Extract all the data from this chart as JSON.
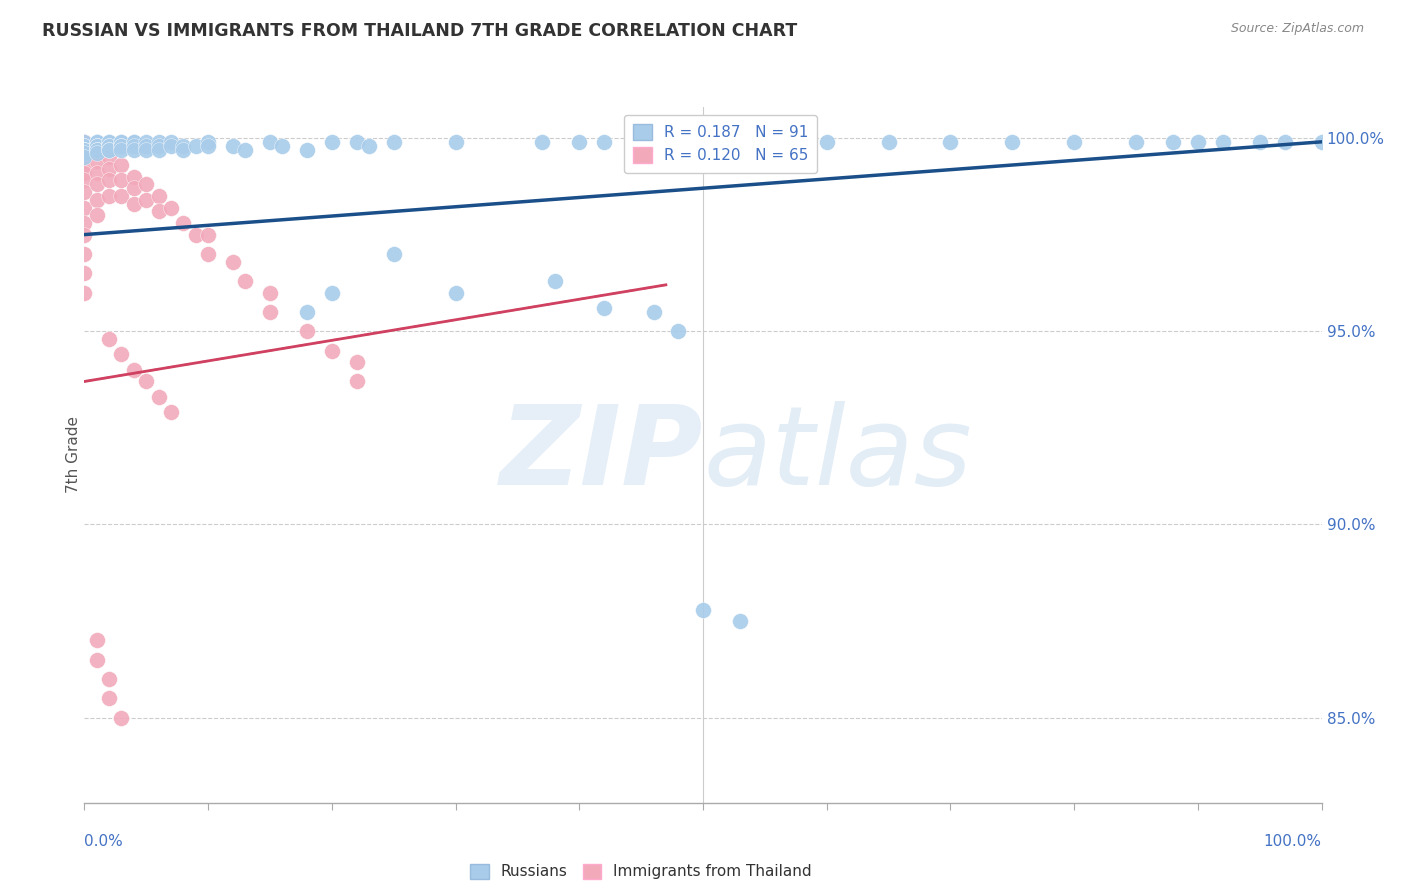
{
  "title": "RUSSIAN VS IMMIGRANTS FROM THAILAND 7TH GRADE CORRELATION CHART",
  "source": "Source: ZipAtlas.com",
  "ylabel": "7th Grade",
  "xmin": 0.0,
  "xmax": 1.0,
  "ymin": 0.828,
  "ymax": 1.008,
  "yticks": [
    0.85,
    0.9,
    0.95,
    1.0
  ],
  "ytick_labels": [
    "85.0%",
    "90.0%",
    "95.0%",
    "100.0%"
  ],
  "r_blue": 0.187,
  "n_blue": 91,
  "r_pink": 0.12,
  "n_pink": 65,
  "blue_color": "#A8CCEA",
  "pink_color": "#F2AABB",
  "trend_blue_color": "#1A4F8A",
  "trend_pink_color": "#D04060",
  "blue_trend_x0": 0.0,
  "blue_trend_x1": 1.0,
  "blue_trend_y0": 0.975,
  "blue_trend_y1": 0.999,
  "pink_trend_x0": 0.0,
  "pink_trend_x1": 0.47,
  "pink_trend_y0": 0.937,
  "pink_trend_y1": 0.962,
  "blue_x": [
    0.0,
    0.0,
    0.0,
    0.0,
    0.0,
    0.0,
    0.0,
    0.0,
    0.0,
    0.0,
    0.01,
    0.01,
    0.01,
    0.01,
    0.01,
    0.01,
    0.01,
    0.01,
    0.01,
    0.01,
    0.02,
    0.02,
    0.02,
    0.02,
    0.02,
    0.02,
    0.03,
    0.03,
    0.03,
    0.03,
    0.03,
    0.04,
    0.04,
    0.04,
    0.04,
    0.05,
    0.05,
    0.05,
    0.06,
    0.06,
    0.06,
    0.07,
    0.07,
    0.08,
    0.08,
    0.09,
    0.1,
    0.1,
    0.12,
    0.13,
    0.15,
    0.16,
    0.18,
    0.2,
    0.22,
    0.23,
    0.25,
    0.3,
    0.37,
    0.4,
    0.42,
    0.45,
    0.45,
    0.48,
    0.52,
    0.55,
    0.6,
    0.65,
    0.7,
    0.75,
    0.8,
    0.85,
    0.88,
    0.9,
    0.92,
    0.95,
    0.97,
    1.0,
    0.3,
    0.38,
    0.42,
    0.46,
    0.48,
    0.25,
    0.18,
    0.2,
    0.5,
    0.53
  ],
  "blue_y": [
    0.999,
    0.998,
    0.998,
    0.997,
    0.997,
    0.997,
    0.997,
    0.997,
    0.996,
    0.995,
    0.999,
    0.999,
    0.999,
    0.998,
    0.998,
    0.998,
    0.997,
    0.997,
    0.997,
    0.996,
    0.999,
    0.999,
    0.998,
    0.998,
    0.997,
    0.997,
    0.999,
    0.999,
    0.998,
    0.998,
    0.997,
    0.999,
    0.999,
    0.998,
    0.997,
    0.999,
    0.998,
    0.997,
    0.999,
    0.998,
    0.997,
    0.999,
    0.998,
    0.998,
    0.997,
    0.998,
    0.999,
    0.998,
    0.998,
    0.997,
    0.999,
    0.998,
    0.997,
    0.999,
    0.999,
    0.998,
    0.999,
    0.999,
    0.999,
    0.999,
    0.999,
    0.999,
    0.999,
    0.999,
    0.999,
    0.999,
    0.999,
    0.999,
    0.999,
    0.999,
    0.999,
    0.999,
    0.999,
    0.999,
    0.999,
    0.999,
    0.999,
    0.999,
    0.96,
    0.963,
    0.956,
    0.955,
    0.95,
    0.97,
    0.955,
    0.96,
    0.878,
    0.875
  ],
  "pink_x": [
    0.0,
    0.0,
    0.0,
    0.0,
    0.0,
    0.0,
    0.0,
    0.0,
    0.0,
    0.0,
    0.0,
    0.0,
    0.0,
    0.0,
    0.0,
    0.0,
    0.0,
    0.0,
    0.01,
    0.01,
    0.01,
    0.01,
    0.01,
    0.01,
    0.01,
    0.02,
    0.02,
    0.02,
    0.02,
    0.03,
    0.03,
    0.03,
    0.04,
    0.04,
    0.04,
    0.05,
    0.05,
    0.06,
    0.06,
    0.07,
    0.08,
    0.09,
    0.1,
    0.1,
    0.12,
    0.13,
    0.15,
    0.15,
    0.18,
    0.2,
    0.22,
    0.22,
    0.02,
    0.03,
    0.04,
    0.05,
    0.06,
    0.07,
    0.01,
    0.01,
    0.02,
    0.02,
    0.03
  ],
  "pink_y": [
    0.999,
    0.999,
    0.999,
    0.998,
    0.998,
    0.997,
    0.996,
    0.995,
    0.993,
    0.991,
    0.989,
    0.986,
    0.982,
    0.978,
    0.975,
    0.97,
    0.965,
    0.96,
    0.998,
    0.996,
    0.994,
    0.991,
    0.988,
    0.984,
    0.98,
    0.995,
    0.992,
    0.989,
    0.985,
    0.993,
    0.989,
    0.985,
    0.99,
    0.987,
    0.983,
    0.988,
    0.984,
    0.985,
    0.981,
    0.982,
    0.978,
    0.975,
    0.975,
    0.97,
    0.968,
    0.963,
    0.96,
    0.955,
    0.95,
    0.945,
    0.942,
    0.937,
    0.948,
    0.944,
    0.94,
    0.937,
    0.933,
    0.929,
    0.87,
    0.865,
    0.86,
    0.855,
    0.85
  ]
}
